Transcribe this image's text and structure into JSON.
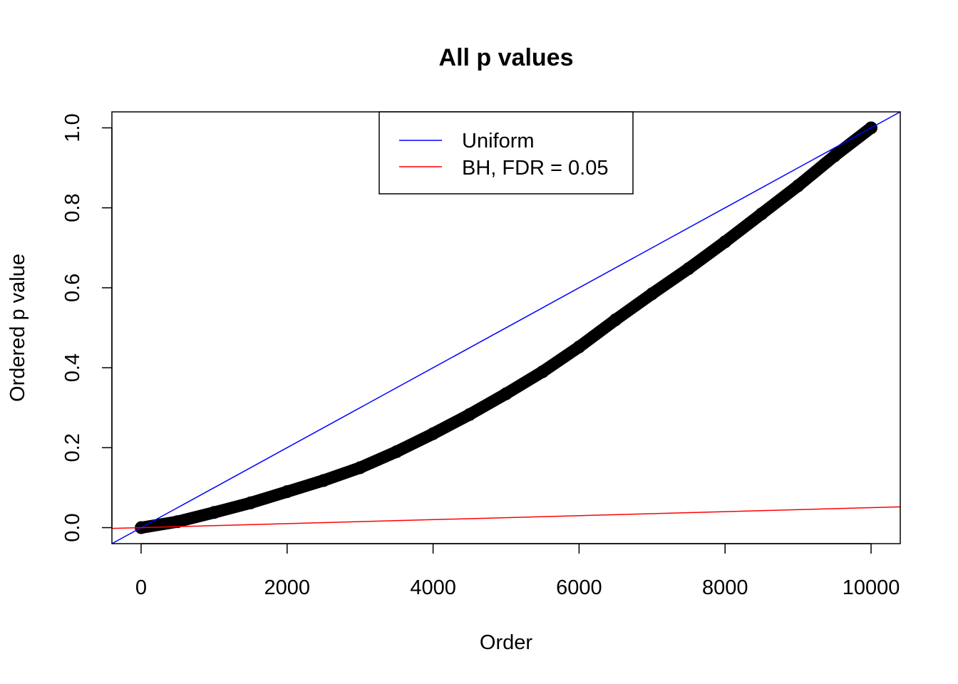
{
  "chart_data": {
    "type": "scatter",
    "title": "All p values",
    "xlabel": "Order",
    "ylabel": "Ordered p value",
    "xlim": [
      -400,
      10400
    ],
    "ylim": [
      -0.04,
      1.04
    ],
    "xticks": [
      0,
      2000,
      4000,
      6000,
      8000,
      10000
    ],
    "xtick_labels": [
      "0",
      "2000",
      "4000",
      "6000",
      "8000",
      "10000"
    ],
    "yticks": [
      0,
      0.2,
      0.4,
      0.6,
      0.8,
      1.0
    ],
    "ytick_labels": [
      "0.0",
      "0.2",
      "0.4",
      "0.6",
      "0.8",
      "1.0"
    ],
    "grid": false,
    "legend_position": "top",
    "points": {
      "color": "#000000",
      "x": [
        1,
        500,
        1000,
        1500,
        2000,
        2500,
        3000,
        3500,
        4000,
        4500,
        5000,
        5500,
        6000,
        6500,
        7000,
        7500,
        8000,
        8500,
        9000,
        9500,
        10000
      ],
      "y": [
        0.0,
        0.015,
        0.038,
        0.062,
        0.09,
        0.118,
        0.15,
        0.19,
        0.235,
        0.283,
        0.335,
        0.39,
        0.452,
        0.52,
        0.585,
        0.648,
        0.715,
        0.785,
        0.855,
        0.93,
        1.0
      ]
    },
    "lines": [
      {
        "name": "Uniform",
        "color": "#0000ff",
        "intercept": 0,
        "slope": 0.0001
      },
      {
        "name": "BH, FDR = 0.05",
        "color": "#ff0000",
        "intercept": 0,
        "slope": 5e-06
      }
    ]
  }
}
